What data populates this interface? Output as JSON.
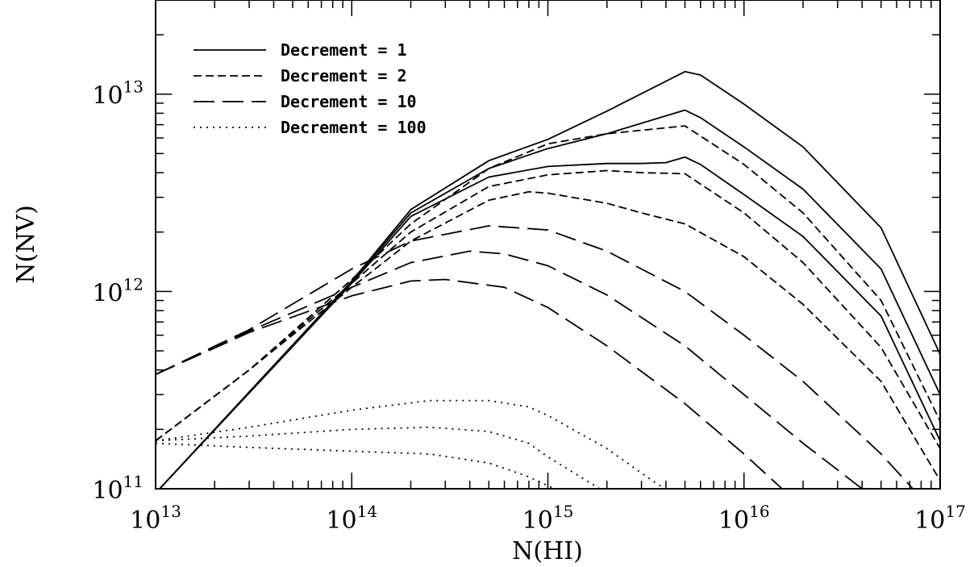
{
  "chart_data": {
    "type": "line",
    "title": "",
    "xlabel": "N(HI)",
    "ylabel": "N(NV)",
    "xscale": "log",
    "yscale": "log",
    "xlim": [
      10000000000000.0,
      1e+17
    ],
    "ylim": [
      100000000000.0,
      30000000000000.0
    ],
    "grid": false,
    "legend_position": "top-left",
    "x_ticks": [
      {
        "value": 10000000000000.0,
        "base": "10",
        "exp": "13"
      },
      {
        "value": 100000000000000.0,
        "base": "10",
        "exp": "14"
      },
      {
        "value": 1000000000000000.0,
        "base": "10",
        "exp": "15"
      },
      {
        "value": 1e+16,
        "base": "10",
        "exp": "16"
      },
      {
        "value": 1e+17,
        "base": "10",
        "exp": "17"
      }
    ],
    "y_ticks": [
      {
        "value": 100000000000.0,
        "base": "10",
        "exp": "11"
      },
      {
        "value": 1000000000000.0,
        "base": "10",
        "exp": "12"
      },
      {
        "value": 10000000000000.0,
        "base": "10",
        "exp": "13"
      }
    ],
    "legend": [
      {
        "label": "Decrement = 1",
        "dash": "solid"
      },
      {
        "label": "Decrement = 2",
        "dash": "short-dash"
      },
      {
        "label": "Decrement = 10",
        "dash": "long-dash"
      },
      {
        "label": "Decrement = 100",
        "dash": "dotted"
      }
    ],
    "series": [
      {
        "group": "Decrement = 1",
        "dash": "solid",
        "x": [
          10000000000000.0,
          100000000000000.0,
          200000000000000.0,
          500000000000000.0,
          1000000000000000.0,
          2000000000000000.0,
          5000000000000000.0,
          6000000000000000.0,
          1e+16,
          2e+16,
          5e+16,
          1e+17
        ],
        "y": [
          95000000000.0,
          1130000000000.0,
          2600000000000.0,
          4600000000000.0,
          5900000000000.0,
          8200000000000.0,
          13000000000000.0,
          12500000000000.0,
          8900000000000.0,
          5400000000000.0,
          2100000000000.0,
          480000000000.0
        ]
      },
      {
        "group": "Decrement = 1",
        "dash": "solid",
        "x": [
          10000000000000.0,
          100000000000000.0,
          200000000000000.0,
          500000000000000.0,
          1000000000000000.0,
          2000000000000000.0,
          5000000000000000.0,
          6000000000000000.0,
          1e+16,
          2e+16,
          5e+16,
          1e+17
        ],
        "y": [
          95000000000.0,
          1120000000000.0,
          2500000000000.0,
          4200000000000.0,
          5300000000000.0,
          6300000000000.0,
          8300000000000.0,
          7600000000000.0,
          5400000000000.0,
          3300000000000.0,
          1300000000000.0,
          300000000000.0
        ]
      },
      {
        "group": "Decrement = 1",
        "dash": "solid",
        "x": [
          10000000000000.0,
          100000000000000.0,
          200000000000000.0,
          500000000000000.0,
          1000000000000000.0,
          2000000000000000.0,
          3000000000000000.0,
          4000000000000000.0,
          5000000000000000.0,
          6000000000000000.0,
          1e+16,
          2e+16,
          5e+16,
          1e+17
        ],
        "y": [
          95000000000.0,
          1100000000000.0,
          2400000000000.0,
          3800000000000.0,
          4300000000000.0,
          4450000000000.0,
          4450000000000.0,
          4500000000000.0,
          4800000000000.0,
          4400000000000.0,
          3100000000000.0,
          1900000000000.0,
          750000000000.0,
          175000000000.0
        ]
      },
      {
        "group": "Decrement = 2",
        "dash": "short-dash",
        "x": [
          10000000000000.0,
          30000000000000.0,
          100000000000000.0,
          200000000000000.0,
          500000000000000.0,
          1000000000000000.0,
          2000000000000000.0,
          5000000000000000.0,
          1e+16,
          2e+16,
          5e+16,
          1e+17
        ],
        "y": [
          175000000000.0,
          400000000000.0,
          1150000000000.0,
          2200000000000.0,
          4200000000000.0,
          5600000000000.0,
          6300000000000.0,
          6900000000000.0,
          4400000000000.0,
          2500000000000.0,
          900000000000.0,
          220000000000.0
        ]
      },
      {
        "group": "Decrement = 2",
        "dash": "short-dash",
        "x": [
          10000000000000.0,
          30000000000000.0,
          100000000000000.0,
          200000000000000.0,
          500000000000000.0,
          1000000000000000.0,
          2000000000000000.0,
          3000000000000000.0,
          5000000000000000.0,
          1e+16,
          2e+16,
          5e+16,
          1e+17
        ],
        "y": [
          175000000000.0,
          400000000000.0,
          1100000000000.0,
          2000000000000.0,
          3400000000000.0,
          3900000000000.0,
          4100000000000.0,
          4000000000000.0,
          3950000000000.0,
          2500000000000.0,
          1400000000000.0,
          520000000000.0,
          160000000000.0
        ]
      },
      {
        "group": "Decrement = 2",
        "dash": "short-dash",
        "x": [
          10000000000000.0,
          30000000000000.0,
          100000000000000.0,
          200000000000000.0,
          500000000000000.0,
          800000000000000.0,
          1000000000000000.0,
          2000000000000000.0,
          3000000000000000.0,
          5000000000000000.0,
          1e+16,
          2e+16,
          5e+16,
          1e+17
        ],
        "y": [
          175000000000.0,
          400000000000.0,
          1050000000000.0,
          1800000000000.0,
          2900000000000.0,
          3200000000000.0,
          3150000000000.0,
          2800000000000.0,
          2500000000000.0,
          2200000000000.0,
          1500000000000.0,
          860000000000.0,
          350000000000.0,
          110000000000.0
        ]
      },
      {
        "group": "Decrement = 10",
        "dash": "long-dash",
        "x": [
          10000000000000.0,
          30000000000000.0,
          100000000000000.0,
          200000000000000.0,
          500000000000000.0,
          1000000000000000.0,
          2000000000000000.0,
          5000000000000000.0,
          1e+16,
          2e+16,
          5e+16,
          8e+16
        ],
        "y": [
          380000000000.0,
          640000000000.0,
          1300000000000.0,
          1800000000000.0,
          2150000000000.0,
          2050000000000.0,
          1600000000000.0,
          1000000000000.0,
          600000000000.0,
          350000000000.0,
          150000000000.0,
          90000000000.0
        ]
      },
      {
        "group": "Decrement = 10",
        "dash": "long-dash",
        "x": [
          10000000000000.0,
          30000000000000.0,
          100000000000000.0,
          200000000000000.0,
          400000000000000.0,
          600000000000000.0,
          1000000000000000.0,
          2000000000000000.0,
          5000000000000000.0,
          1e+16,
          2e+16,
          4e+16,
          6e+16
        ],
        "y": [
          380000000000.0,
          630000000000.0,
          1050000000000.0,
          1400000000000.0,
          1600000000000.0,
          1550000000000.0,
          1350000000000.0,
          960000000000.0,
          530000000000.0,
          300000000000.0,
          170000000000.0,
          100000000000.0,
          70000000000.0
        ]
      },
      {
        "group": "Decrement = 10",
        "dash": "long-dash",
        "x": [
          10000000000000.0,
          30000000000000.0,
          100000000000000.0,
          200000000000000.0,
          300000000000000.0,
          600000000000000.0,
          1000000000000000.0,
          2000000000000000.0,
          5000000000000000.0,
          1e+16,
          2e+16
        ],
        "y": [
          380000000000.0,
          620000000000.0,
          950000000000.0,
          1130000000000.0,
          1150000000000.0,
          1050000000000.0,
          830000000000.0,
          530000000000.0,
          270000000000.0,
          150000000000.0,
          80000000000.0
        ]
      },
      {
        "group": "Decrement = 100",
        "dash": "dotted",
        "x": [
          10000000000000.0,
          30000000000000.0,
          100000000000000.0,
          250000000000000.0,
          500000000000000.0,
          800000000000000.0,
          1000000000000000.0,
          2000000000000000.0,
          3000000000000000.0,
          5000000000000000.0
        ],
        "y": [
          175000000000.0,
          205000000000.0,
          250000000000.0,
          280000000000.0,
          280000000000.0,
          260000000000.0,
          235000000000.0,
          160000000000.0,
          120000000000.0,
          85000000000.0
        ]
      },
      {
        "group": "Decrement = 100",
        "dash": "dotted",
        "x": [
          10000000000000.0,
          30000000000000.0,
          100000000000000.0,
          250000000000000.0,
          500000000000000.0,
          800000000000000.0,
          1000000000000000.0,
          2000000000000000.0
        ],
        "y": [
          175000000000.0,
          185000000000.0,
          200000000000.0,
          205000000000.0,
          195000000000.0,
          170000000000.0,
          145000000000.0,
          95000000000.0
        ]
      },
      {
        "group": "Decrement = 100",
        "dash": "dotted",
        "x": [
          10000000000000.0,
          30000000000000.0,
          100000000000000.0,
          250000000000000.0,
          500000000000000.0,
          800000000000000.0,
          1200000000000000.0
        ],
        "y": [
          170000000000.0,
          162000000000.0,
          155000000000.0,
          150000000000.0,
          135000000000.0,
          115000000000.0,
          95000000000.0
        ]
      }
    ]
  }
}
